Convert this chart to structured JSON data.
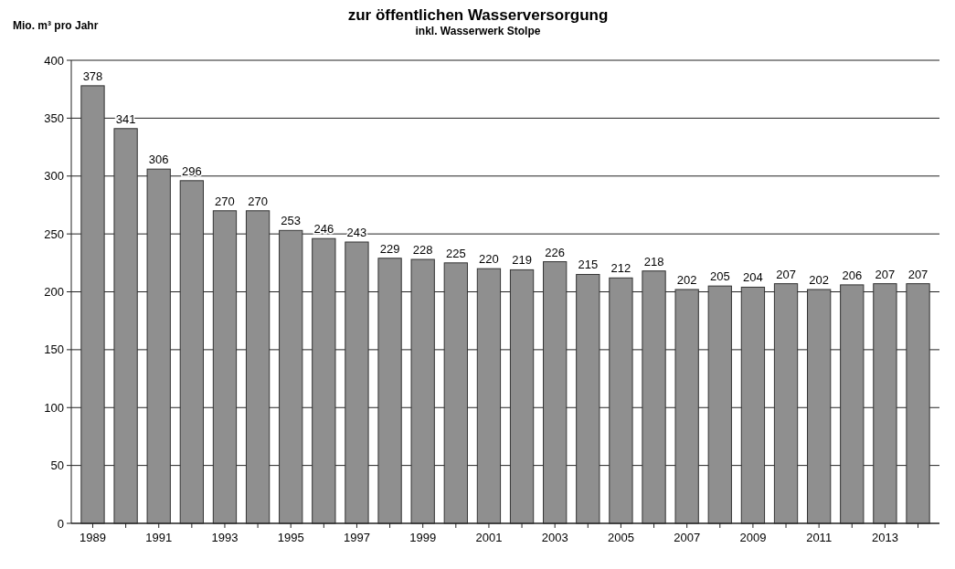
{
  "chart_data": {
    "type": "bar",
    "title": "zur öffentlichen Wasserversorgung",
    "subtitle": "inkl. Wasserwerk Stolpe",
    "ylabel": "Mio. m³ pro Jahr",
    "categories": [
      "1989",
      null,
      "1991",
      null,
      "1993",
      null,
      "1995",
      null,
      "1997",
      null,
      "1999",
      null,
      "2001",
      null,
      "2003",
      null,
      "2005",
      null,
      "2007",
      null,
      "2009",
      null,
      "2011",
      null,
      "2013",
      null
    ],
    "values": [
      378,
      341,
      306,
      296,
      270,
      270,
      253,
      246,
      243,
      229,
      228,
      225,
      220,
      219,
      226,
      215,
      212,
      218,
      202,
      205,
      204,
      207,
      202,
      206,
      207,
      207
    ],
    "color": "#8f8f8f",
    "ylim": [
      0,
      400
    ],
    "yticks": [
      0,
      50,
      100,
      150,
      200,
      250,
      300,
      350,
      400
    ],
    "grid": "y",
    "data_labels": true
  }
}
